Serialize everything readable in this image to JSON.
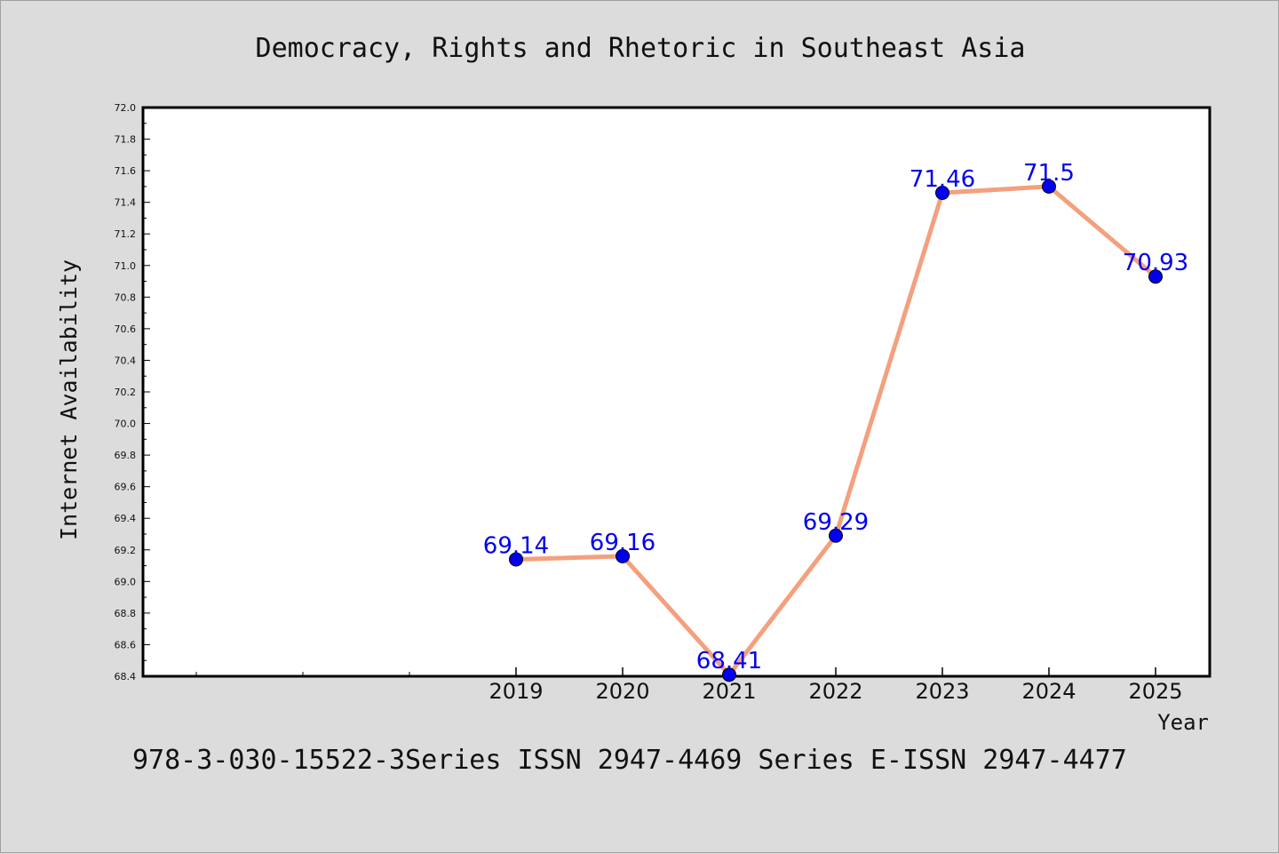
{
  "chart_data": {
    "type": "line",
    "title": "Democracy, Rights and Rhetoric in Southeast Asia",
    "xlabel": "Year",
    "ylabel": "Internet Availability",
    "x": [
      "2019",
      "2020",
      "2021",
      "2022",
      "2023",
      "2024",
      "2025"
    ],
    "series": [
      {
        "values": [
          69.14,
          69.16,
          68.41,
          69.29,
          71.46,
          71.5,
          70.93
        ],
        "data_labels": [
          "69.14",
          "69.16",
          "68.41",
          "69.29",
          "71.46",
          "71.5",
          "70.93"
        ],
        "line_color": "#f4a07e",
        "marker_color": "#0000ee"
      }
    ],
    "ylim": [
      68.4,
      72.0
    ],
    "yticks": [
      "68.4",
      "68.6",
      "68.8",
      "69.0",
      "69.2",
      "69.4",
      "69.6",
      "69.8",
      "70.0",
      "70.2",
      "70.4",
      "70.6",
      "70.8",
      "71.0",
      "71.2",
      "71.4",
      "71.6",
      "71.8",
      "72.0"
    ],
    "grid": false,
    "legend": "none"
  },
  "footer_text": "978-3-030-15522-3Series ISSN 2947-4469 Series E-ISSN 2947-4477"
}
